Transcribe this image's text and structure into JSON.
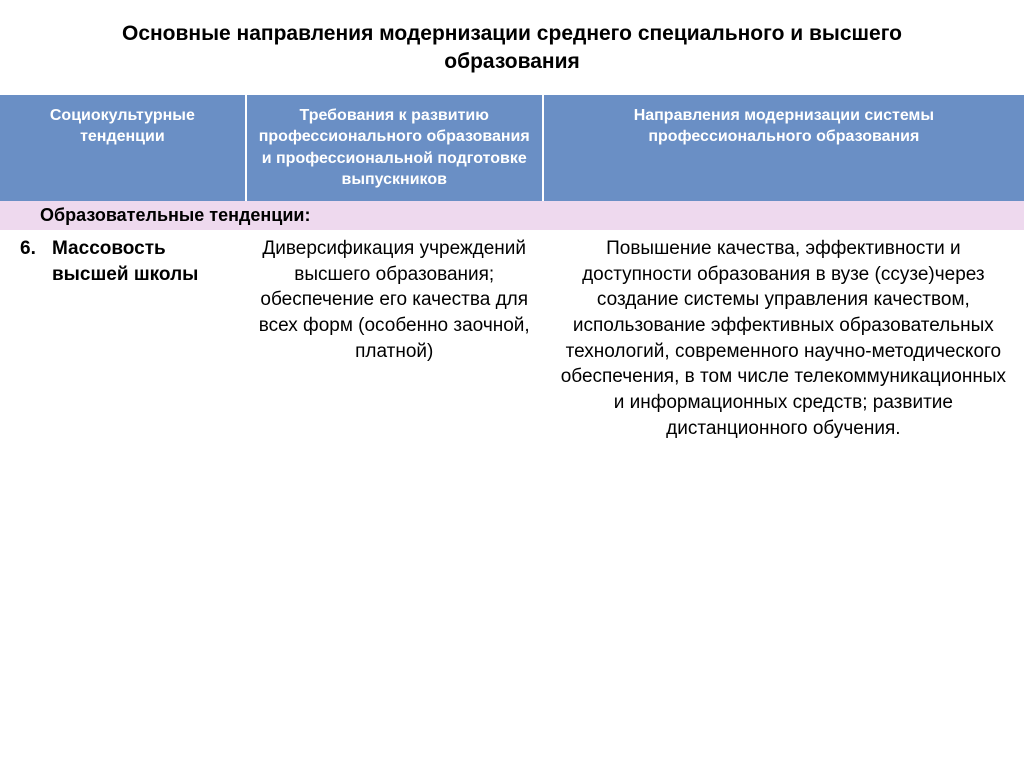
{
  "title": "Основные направления модернизации среднего специального и высшего образования",
  "table": {
    "header_bg": "#6a8fc5",
    "header_fg": "#ffffff",
    "section_bg": "#eed9ee",
    "col_widths": [
      "24%",
      "29%",
      "47%"
    ],
    "columns": [
      "Социокультурные тенденции",
      "Требования к развитию профессионального образования и профессиональной подготовке выпускников",
      "Направления модернизации системы профессионального образования"
    ],
    "section_label": "Образовательные  тенденции:",
    "row": {
      "num": "6.",
      "col1": "Массовость высшей школы",
      "col2": "Диверсификация учреждений высшего образования; обеспечение его качества для всех форм (особенно заочной, платной)",
      "col3": "Повышение качества, эффективности и доступности образования в вузе (ссузе)через создание системы управления качеством, использование эффективных образовательных технологий, современного научно-методического обеспечения, в том числе телекоммуникационных и информационных средств; развитие дистанционного обучения."
    }
  }
}
